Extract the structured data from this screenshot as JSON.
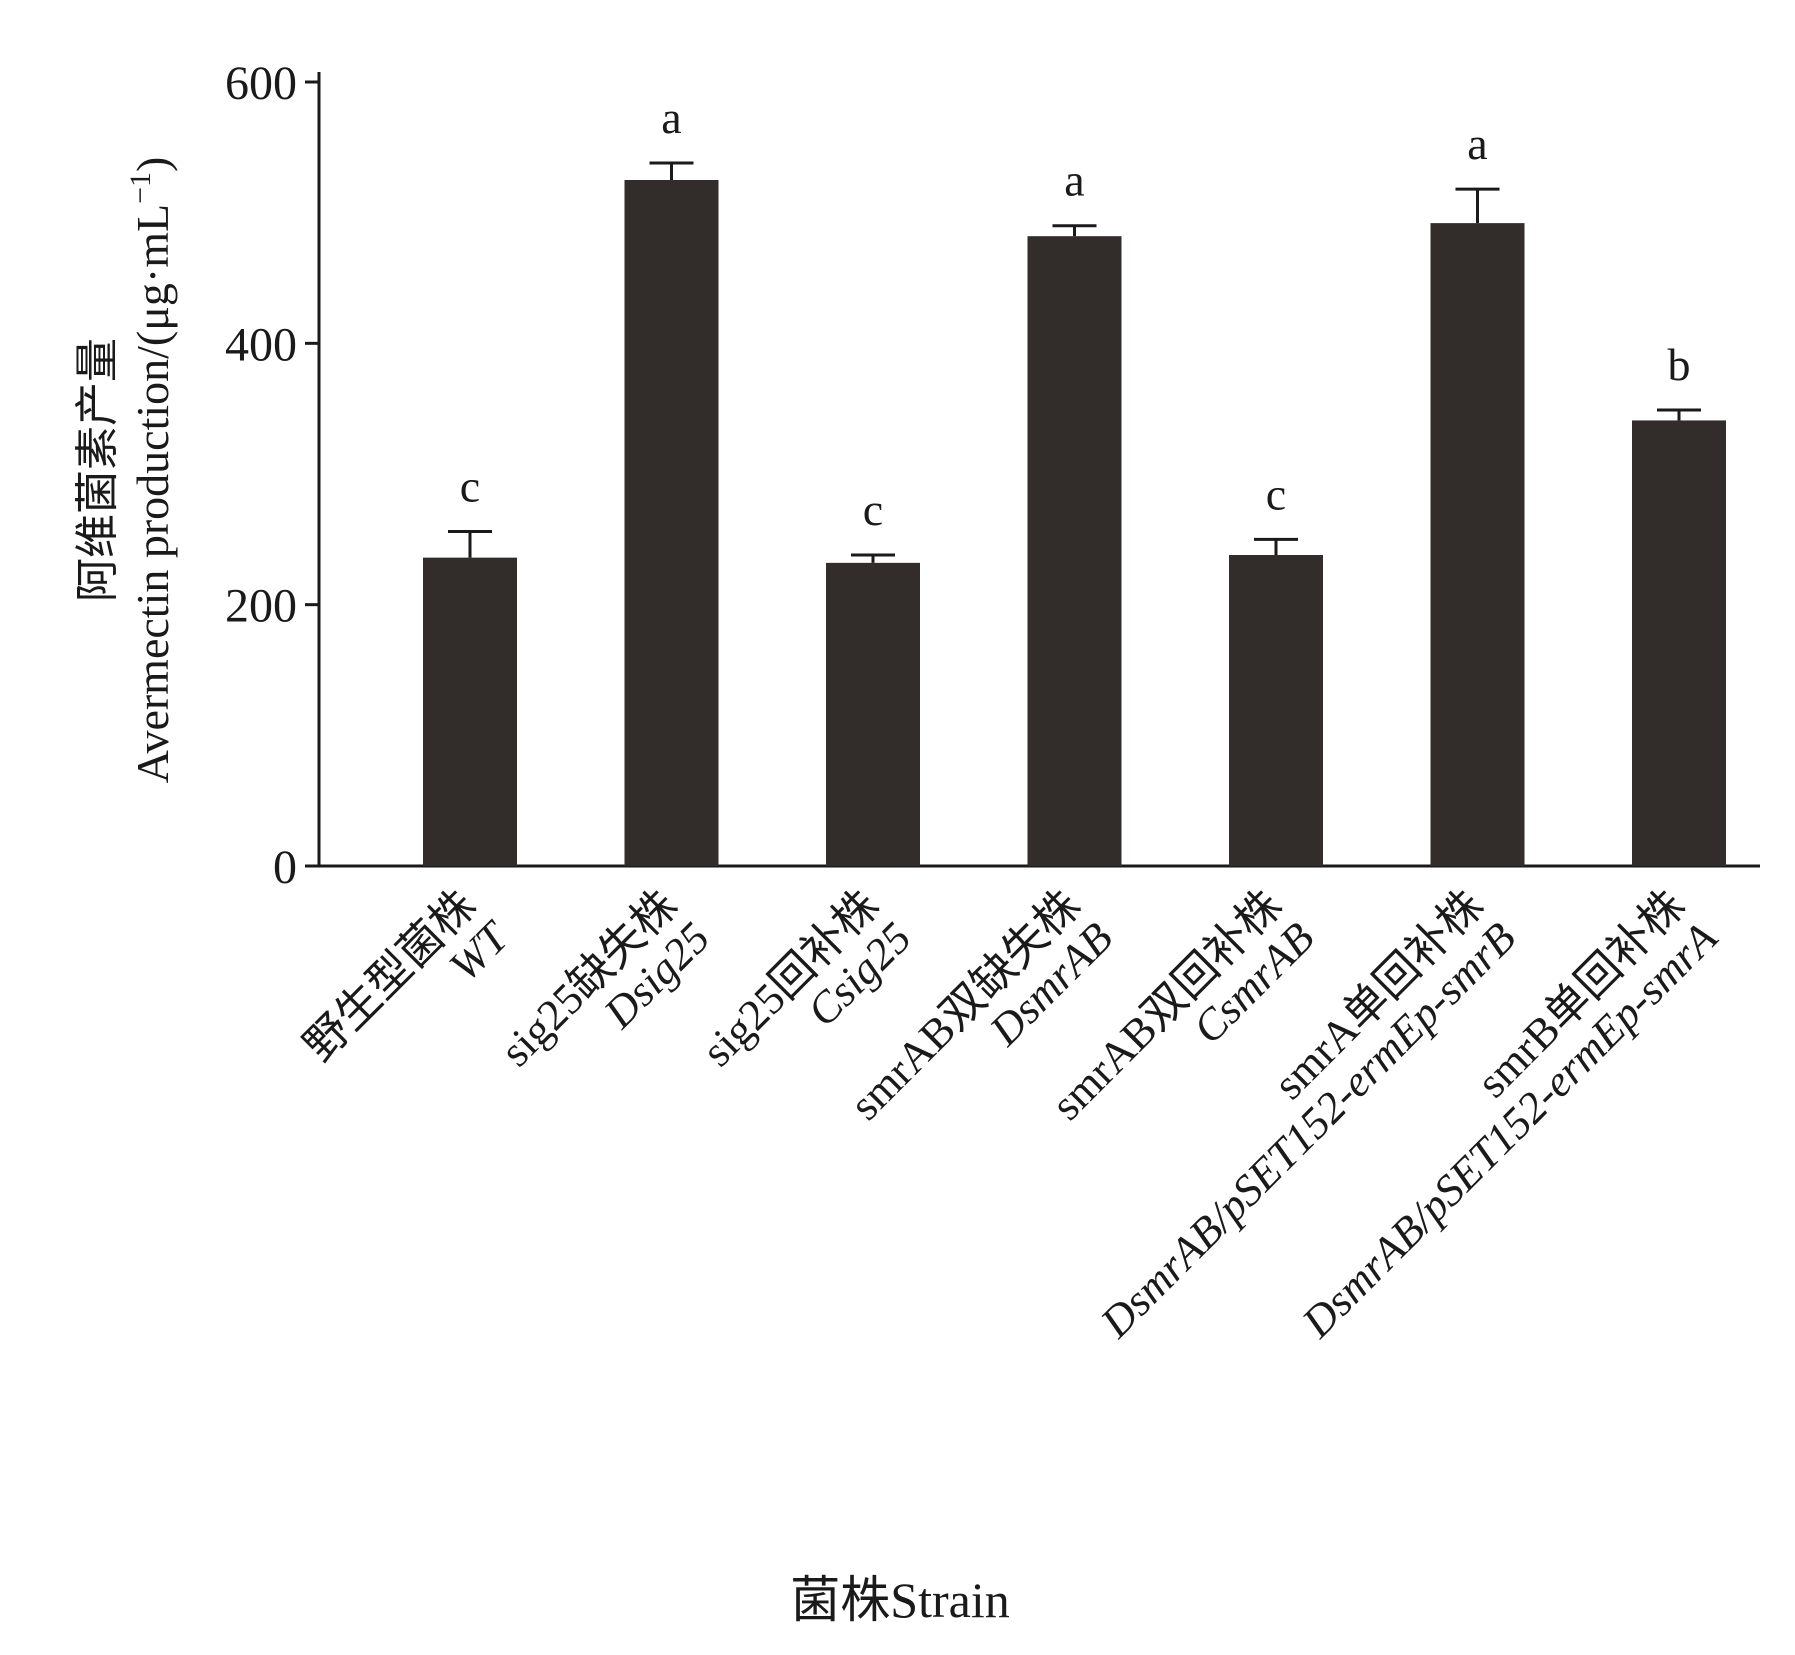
{
  "chart_data": {
    "type": "bar",
    "title": "",
    "xlabel": "菌株Strain",
    "ylabel_cn": "阿维菌素产量",
    "ylabel_en_main": "Avermectin production/(μg·mL",
    "ylabel_en_sup": "−1",
    "ylabel_en_close": ")",
    "ylim": [
      0,
      600
    ],
    "yticks": [
      0,
      200,
      400,
      600
    ],
    "ytick_labels": [
      "0",
      "200",
      "400",
      "600"
    ],
    "bar_color": "#322d2b",
    "grid": false,
    "legend": "none",
    "categories": [
      {
        "line1": "野生型菌株",
        "line2": "WT"
      },
      {
        "line1": "sig25缺失株",
        "line2": "Dsig25"
      },
      {
        "line1": "sig25回补株",
        "line2": "Csig25"
      },
      {
        "line1": "smrAB双缺失株",
        "line2": "DsmrAB"
      },
      {
        "line1": "smrAB双回补株",
        "line2": "CsmrAB"
      },
      {
        "line1": "smrA单回补株",
        "line2": "DsmrAB/pSET152-ermEp-smrB"
      },
      {
        "line1": "smrB单回补株",
        "line2": "DsmrAB/pSET152-ermEp-smrA"
      }
    ],
    "values": [
      236,
      525,
      232,
      482,
      238,
      492,
      341
    ],
    "errors": [
      20,
      13,
      6,
      8,
      12,
      26,
      8
    ],
    "significance": [
      "c",
      "a",
      "c",
      "a",
      "c",
      "a",
      "b"
    ]
  }
}
